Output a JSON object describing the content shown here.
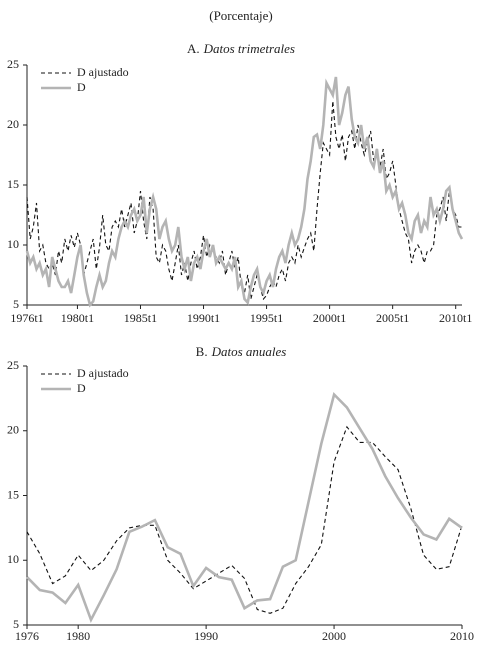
{
  "chart_data": [
    {
      "type": "line",
      "subtitle": "(Porcentaje)",
      "title_label": "A.",
      "title": "Datos trimetrales",
      "categories": [
        "1976t1",
        null,
        null,
        null,
        null,
        null,
        null,
        null,
        null,
        null,
        null,
        null,
        null,
        null,
        null,
        null,
        "1980t1",
        null,
        null,
        null,
        null,
        null,
        null,
        null,
        null,
        null,
        null,
        null,
        null,
        null,
        null,
        null,
        null,
        null,
        null,
        null,
        "1985t1",
        null,
        null,
        null,
        null,
        null,
        null,
        null,
        null,
        null,
        null,
        null,
        null,
        null,
        null,
        null,
        null,
        null,
        null,
        null,
        "1990t1",
        null,
        null,
        null,
        null,
        null,
        null,
        null,
        null,
        null,
        null,
        null,
        null,
        null,
        null,
        null,
        null,
        null,
        null,
        null,
        "1995t1",
        null,
        null,
        null,
        null,
        null,
        null,
        null,
        null,
        null,
        null,
        null,
        null,
        null,
        null,
        null,
        null,
        null,
        null,
        null,
        "2000t1",
        null,
        null,
        null,
        null,
        null,
        null,
        null,
        null,
        null,
        null,
        null,
        null,
        null,
        null,
        null,
        null,
        null,
        null,
        null,
        "2005t1",
        null,
        null,
        null,
        null,
        null,
        null,
        null,
        null,
        null,
        null,
        null,
        null,
        null,
        null,
        null,
        null,
        null,
        null,
        null,
        "2010t1",
        null,
        null
      ],
      "series": [
        {
          "name": "D ajustado",
          "color": "#111111",
          "dash": true,
          "values": [
            14,
            10.5,
            11.5,
            13.5,
            9.5,
            10,
            8.5,
            8,
            8.5,
            7.5,
            9.5,
            8.5,
            10.5,
            9.5,
            10.8,
            9.8,
            11,
            10,
            7.5,
            8.5,
            9.5,
            10.5,
            8,
            9.8,
            12.5,
            10,
            9.5,
            11.5,
            12,
            11.5,
            13,
            11.5,
            12.5,
            13.5,
            11,
            12,
            14.5,
            12,
            10.5,
            14,
            13,
            9,
            8.5,
            10,
            9.5,
            8,
            7,
            8.5,
            10,
            7.5,
            8.5,
            7,
            8.5,
            9.5,
            8,
            9,
            10.8,
            9,
            10,
            9.5,
            9,
            8.5,
            9.5,
            7.5,
            8.5,
            9.5,
            8,
            9,
            6.5,
            6,
            7.5,
            5.5,
            6.5,
            7.5,
            6.5,
            5.5,
            5.8,
            6.5,
            7,
            6.5,
            7.5,
            8,
            7,
            8.5,
            9,
            8.5,
            10,
            9,
            9.8,
            10.5,
            11,
            9.5,
            13,
            16,
            18.5,
            18,
            17.5,
            22,
            19,
            18,
            19.2,
            17,
            19,
            19.5,
            18,
            20,
            18.5,
            17.5,
            18.5,
            19.5,
            17,
            18,
            16.5,
            18,
            15.5,
            16,
            17,
            15,
            13,
            12,
            11,
            10.5,
            8.5,
            9.5,
            10,
            9.5,
            8.5,
            9.5,
            9.5,
            10,
            12.5,
            13,
            14,
            12,
            14.5,
            13,
            12.5,
            11.5,
            11.5
          ]
        },
        {
          "name": "D",
          "color": "#b4b4b4",
          "dash": false,
          "values": [
            9.5,
            8.5,
            9,
            8,
            8.5,
            7.5,
            8,
            6.5,
            9,
            8,
            7,
            6.5,
            6.5,
            7,
            6,
            7.5,
            9,
            10,
            7.5,
            6,
            5,
            5.3,
            6.5,
            7.5,
            6.5,
            7,
            8.5,
            9.5,
            9,
            10.5,
            11.5,
            12,
            11.5,
            12.5,
            13,
            12,
            12.5,
            14,
            11,
            13,
            14,
            13,
            10.5,
            11.5,
            12,
            10.5,
            9.5,
            10,
            11.5,
            9,
            8,
            9,
            7,
            8.5,
            9,
            8,
            9.5,
            10.5,
            9,
            10,
            8.5,
            9,
            8.5,
            8,
            8.5,
            8,
            9,
            6.5,
            7,
            5.5,
            5.2,
            6.5,
            7.5,
            8,
            6.5,
            6,
            7,
            7.5,
            6.5,
            8,
            9,
            9.5,
            8.5,
            10,
            11,
            10,
            10.5,
            11.5,
            13,
            15.5,
            17,
            19,
            19.2,
            18,
            20,
            23.5,
            23,
            22.5,
            24,
            20,
            21,
            22.5,
            23.2,
            20.5,
            19,
            18.5,
            20,
            18,
            19,
            17,
            16.5,
            18,
            16,
            17,
            14.5,
            15,
            14,
            14.5,
            13,
            13.5,
            12.5,
            11,
            10.5,
            12,
            12.5,
            11,
            12,
            11.5,
            14,
            12.5,
            13,
            12,
            13,
            14.5,
            14.8,
            13,
            12,
            11,
            10.5
          ]
        }
      ],
      "ylim": [
        5,
        25
      ],
      "yticks": [
        5,
        10,
        15,
        20,
        25
      ],
      "grid": false,
      "legend": "upper left"
    },
    {
      "type": "line",
      "title_label": "B.",
      "title": "Datos anuales",
      "x": [
        1976,
        1977,
        1978,
        1979,
        1980,
        1981,
        1982,
        1983,
        1984,
        1985,
        1986,
        1987,
        1988,
        1989,
        1990,
        1991,
        1992,
        1993,
        1994,
        1995,
        1996,
        1997,
        1998,
        1999,
        2000,
        2001,
        2002,
        2003,
        2004,
        2005,
        2006,
        2007,
        2008,
        2009,
        2010
      ],
      "xlim": [
        1976,
        2010
      ],
      "xticks": [
        1976,
        1980,
        1990,
        2000,
        2010
      ],
      "series": [
        {
          "name": "D ajustado",
          "color": "#111111",
          "dash": true,
          "values": [
            12.2,
            10.5,
            8.2,
            8.8,
            10.4,
            9.2,
            10,
            11.5,
            12.5,
            12.7,
            12.7,
            10,
            9,
            7.8,
            8.4,
            9,
            9.6,
            8.6,
            6.2,
            5.9,
            6.3,
            8.2,
            9.5,
            11.2,
            17.6,
            20.3,
            19.1,
            19.1,
            18,
            17,
            14,
            10.4,
            9.3,
            9.5,
            12.7
          ]
        },
        {
          "name": "D",
          "color": "#b4b4b4",
          "dash": false,
          "values": [
            8.7,
            7.7,
            7.5,
            6.7,
            8.1,
            5.4,
            7.3,
            9.3,
            12.2,
            12.6,
            13.1,
            11,
            10.5,
            8,
            9.4,
            8.7,
            8.5,
            6.3,
            6.9,
            7,
            9.5,
            10,
            14.5,
            19,
            22.8,
            21.8,
            20.2,
            18.6,
            16.5,
            14.8,
            13.3,
            12,
            11.6,
            13.2,
            12.5
          ]
        }
      ],
      "ylim": [
        5,
        25
      ],
      "yticks": [
        5,
        10,
        15,
        20,
        25
      ],
      "grid": false,
      "legend": "upper left"
    }
  ]
}
